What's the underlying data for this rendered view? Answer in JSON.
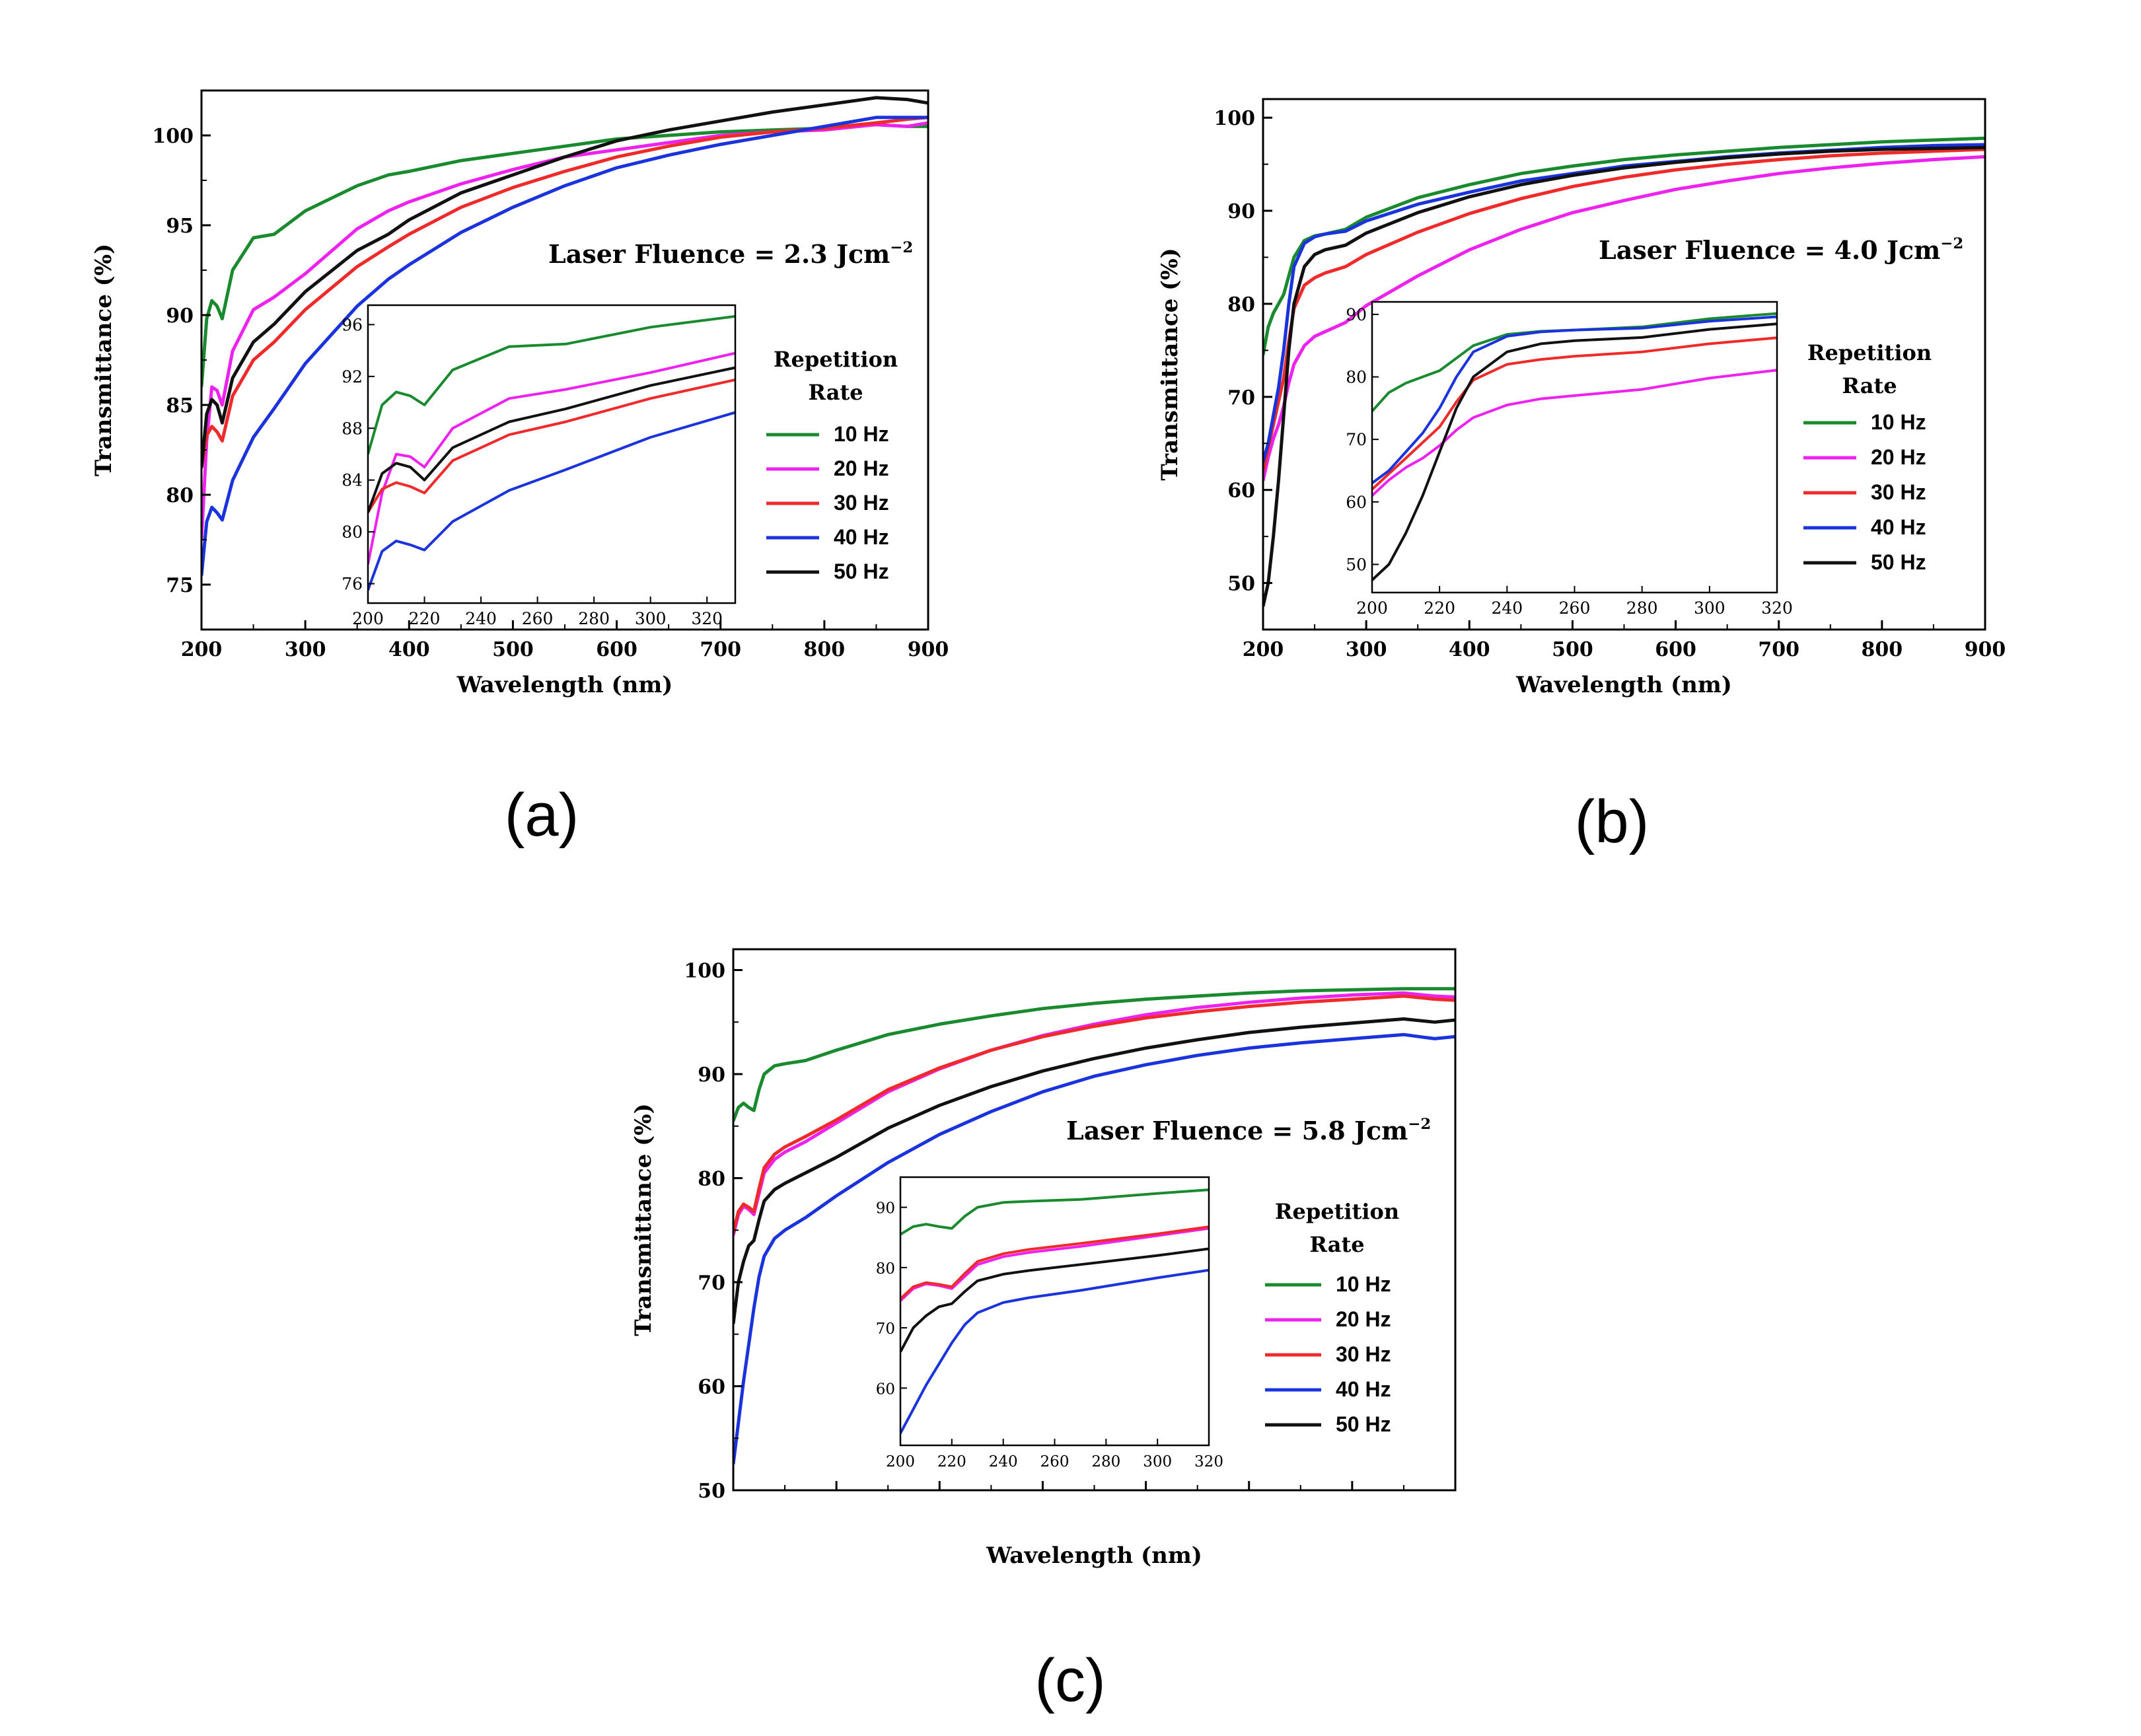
{
  "panels": [
    {
      "letter": "(a)"
    },
    {
      "letter": "(b)"
    },
    {
      "letter": "(c)"
    }
  ],
  "chart_data": [
    {
      "type": "line",
      "panel": "(a)",
      "annotation": "Laser Fluence = 2.3 Jcm",
      "annotation_sup": "−2",
      "xlabel": "Wavelength (nm)",
      "ylabel": "Transmittance (%)",
      "xlim": [
        200,
        900
      ],
      "ylim": [
        72.5,
        102.5
      ],
      "xticks": [
        200,
        300,
        400,
        500,
        600,
        700,
        800,
        900
      ],
      "yticks": [
        75,
        80,
        85,
        90,
        95,
        100
      ],
      "legend_title": [
        "Repetition",
        "Rate"
      ],
      "series": [
        {
          "name": "10 Hz",
          "color": "#1a8a2e",
          "x": [
            200,
            205,
            210,
            215,
            220,
            230,
            250,
            270,
            300,
            350,
            380,
            400,
            450,
            500,
            550,
            600,
            650,
            700,
            750,
            800,
            850,
            880,
            900
          ],
          "y": [
            86,
            89.8,
            90.8,
            90.5,
            89.8,
            92.5,
            94.3,
            94.5,
            95.8,
            97.2,
            97.8,
            98.0,
            98.6,
            99.0,
            99.4,
            99.8,
            100.0,
            100.2,
            100.3,
            100.4,
            100.6,
            100.5,
            100.5
          ]
        },
        {
          "name": "20 Hz",
          "color": "#ee22ee",
          "x": [
            200,
            205,
            210,
            215,
            220,
            230,
            250,
            270,
            300,
            350,
            380,
            400,
            450,
            500,
            550,
            600,
            650,
            700,
            750,
            800,
            850,
            880,
            900
          ],
          "y": [
            77.5,
            83.0,
            86.0,
            85.8,
            85.0,
            88.0,
            90.3,
            91.0,
            92.3,
            94.8,
            95.8,
            96.3,
            97.3,
            98.1,
            98.8,
            99.2,
            99.6,
            100.0,
            100.2,
            100.3,
            100.6,
            100.5,
            100.7
          ]
        },
        {
          "name": "30 Hz",
          "color": "#ee2a2a",
          "x": [
            200,
            205,
            210,
            215,
            220,
            230,
            250,
            270,
            300,
            350,
            380,
            400,
            450,
            500,
            550,
            600,
            650,
            700,
            750,
            800,
            850,
            880,
            900
          ],
          "y": [
            81.5,
            83.3,
            83.8,
            83.5,
            83.0,
            85.5,
            87.5,
            88.5,
            90.3,
            92.7,
            93.8,
            94.5,
            96.0,
            97.1,
            98.0,
            98.8,
            99.4,
            99.9,
            100.2,
            100.4,
            100.7,
            100.9,
            101.0
          ]
        },
        {
          "name": "40 Hz",
          "color": "#1a33dd",
          "x": [
            200,
            205,
            210,
            215,
            220,
            230,
            250,
            270,
            300,
            350,
            380,
            400,
            450,
            500,
            550,
            600,
            650,
            700,
            750,
            800,
            850,
            880,
            900
          ],
          "y": [
            75.5,
            78.5,
            79.3,
            79.0,
            78.6,
            80.8,
            83.2,
            84.8,
            87.3,
            90.5,
            92.0,
            92.8,
            94.6,
            96.0,
            97.2,
            98.2,
            98.9,
            99.5,
            100.0,
            100.5,
            101.0,
            101.0,
            101.0
          ]
        },
        {
          "name": "50 Hz",
          "color": "#111111",
          "x": [
            200,
            205,
            210,
            215,
            220,
            230,
            250,
            270,
            300,
            350,
            380,
            400,
            450,
            500,
            550,
            600,
            650,
            700,
            750,
            800,
            850,
            880,
            900
          ],
          "y": [
            81.5,
            84.5,
            85.3,
            85.0,
            84.0,
            86.5,
            88.5,
            89.5,
            91.3,
            93.6,
            94.5,
            95.3,
            96.8,
            97.8,
            98.8,
            99.7,
            100.3,
            100.8,
            101.3,
            101.7,
            102.1,
            102.0,
            101.8
          ]
        }
      ],
      "inset": {
        "xlim": [
          200,
          330
        ],
        "ylim": [
          74.5,
          97.5
        ],
        "xticks": [
          200,
          220,
          240,
          260,
          280,
          300,
          320
        ],
        "yticks": [
          76,
          80,
          84,
          88,
          92,
          96
        ]
      }
    },
    {
      "type": "line",
      "panel": "(b)",
      "annotation": "Laser Fluence = 4.0 Jcm",
      "annotation_sup": "−2",
      "xlabel": "Wavelength (nm)",
      "ylabel": "Transmittance (%)",
      "xlim": [
        200,
        900
      ],
      "ylim": [
        45,
        102
      ],
      "xticks": [
        200,
        300,
        400,
        500,
        600,
        700,
        800,
        900
      ],
      "yticks": [
        50,
        60,
        70,
        80,
        90,
        100
      ],
      "legend_title": [
        "Repetition",
        "Rate"
      ],
      "series": [
        {
          "name": "10 Hz",
          "color": "#1a8a2e",
          "x": [
            200,
            205,
            210,
            215,
            220,
            225,
            230,
            240,
            250,
            260,
            280,
            300,
            350,
            400,
            450,
            500,
            550,
            600,
            650,
            700,
            750,
            800,
            850,
            900
          ],
          "y": [
            74.5,
            77.5,
            79,
            80,
            81,
            83,
            85,
            86.8,
            87.3,
            87.5,
            88,
            89.3,
            91.4,
            92.8,
            94.0,
            94.8,
            95.5,
            96.0,
            96.4,
            96.8,
            97.1,
            97.4,
            97.6,
            97.8
          ]
        },
        {
          "name": "20 Hz",
          "color": "#ee22ee",
          "x": [
            200,
            205,
            210,
            215,
            220,
            225,
            230,
            240,
            250,
            260,
            280,
            300,
            350,
            400,
            450,
            500,
            550,
            600,
            650,
            700,
            750,
            800,
            850,
            900
          ],
          "y": [
            61,
            63.5,
            65.5,
            67,
            69,
            71.5,
            73.5,
            75.5,
            76.5,
            77,
            78,
            79.8,
            83.0,
            85.8,
            88.0,
            89.8,
            91.1,
            92.3,
            93.2,
            94.0,
            94.6,
            95.1,
            95.5,
            95.8
          ]
        },
        {
          "name": "30 Hz",
          "color": "#ee2a2a",
          "x": [
            200,
            205,
            210,
            215,
            220,
            225,
            230,
            240,
            250,
            260,
            280,
            300,
            350,
            400,
            450,
            500,
            550,
            600,
            650,
            700,
            750,
            800,
            850,
            900
          ],
          "y": [
            62,
            64.5,
            67,
            69.5,
            72,
            76,
            79.5,
            82,
            82.8,
            83.3,
            84,
            85.3,
            87.7,
            89.7,
            91.3,
            92.6,
            93.6,
            94.4,
            95.0,
            95.5,
            95.9,
            96.2,
            96.4,
            96.6
          ]
        },
        {
          "name": "40 Hz",
          "color": "#1a33dd",
          "x": [
            200,
            205,
            210,
            215,
            220,
            225,
            230,
            240,
            250,
            260,
            280,
            300,
            350,
            400,
            450,
            500,
            550,
            600,
            650,
            700,
            750,
            800,
            850,
            900
          ],
          "y": [
            63,
            65,
            68,
            71,
            75,
            80,
            84,
            86.5,
            87.2,
            87.5,
            87.8,
            88.9,
            90.7,
            92.0,
            93.2,
            94.0,
            94.8,
            95.3,
            95.8,
            96.2,
            96.5,
            96.8,
            97.0,
            97.1
          ]
        },
        {
          "name": "50 Hz",
          "color": "#111111",
          "x": [
            200,
            205,
            210,
            215,
            220,
            225,
            230,
            240,
            250,
            260,
            280,
            300,
            350,
            400,
            450,
            500,
            550,
            600,
            650,
            700,
            750,
            800,
            850,
            900
          ],
          "y": [
            47.5,
            50,
            55,
            61,
            68,
            75,
            80,
            84,
            85.3,
            85.8,
            86.3,
            87.6,
            89.8,
            91.5,
            92.8,
            93.8,
            94.6,
            95.2,
            95.7,
            96.1,
            96.4,
            96.6,
            96.7,
            96.8
          ]
        }
      ],
      "inset": {
        "xlim": [
          200,
          320
        ],
        "ylim": [
          45.5,
          92
        ],
        "xticks": [
          200,
          220,
          240,
          260,
          280,
          300,
          320
        ],
        "yticks": [
          50,
          60,
          70,
          80,
          90
        ]
      }
    },
    {
      "type": "line",
      "panel": "(c)",
      "annotation": "Laser Fluence = 5.8 Jcm",
      "annotation_sup": "−2",
      "xlabel": "Wavelength (nm)",
      "ylabel": "Transmittance (%)",
      "xlim": [
        200,
        900
      ],
      "ylim": [
        50,
        102
      ],
      "xticks": [],
      "yticks": [
        50,
        60,
        70,
        80,
        90,
        100
      ],
      "legend_title": [
        "Repetition",
        "Rate"
      ],
      "series": [
        {
          "name": "10 Hz",
          "color": "#1a8a2e",
          "x": [
            200,
            205,
            210,
            215,
            220,
            225,
            230,
            240,
            250,
            270,
            300,
            350,
            400,
            450,
            500,
            550,
            600,
            650,
            700,
            750,
            800,
            850,
            880,
            900
          ],
          "y": [
            85.5,
            86.8,
            87.2,
            86.8,
            86.5,
            88.5,
            90,
            90.8,
            91.0,
            91.3,
            92.3,
            93.8,
            94.8,
            95.6,
            96.3,
            96.8,
            97.2,
            97.5,
            97.8,
            98.0,
            98.1,
            98.2,
            98.2,
            98.2
          ]
        },
        {
          "name": "20 Hz",
          "color": "#ee22ee",
          "x": [
            200,
            205,
            210,
            215,
            220,
            225,
            230,
            240,
            250,
            270,
            300,
            350,
            400,
            450,
            500,
            550,
            600,
            650,
            700,
            750,
            800,
            850,
            880,
            900
          ],
          "y": [
            74.5,
            76.5,
            77.3,
            77,
            76.5,
            78.5,
            80.5,
            81.8,
            82.5,
            83.5,
            85.3,
            88.3,
            90.5,
            92.3,
            93.7,
            94.8,
            95.7,
            96.4,
            96.9,
            97.3,
            97.6,
            97.8,
            97.5,
            97.4
          ]
        },
        {
          "name": "30 Hz",
          "color": "#ee2a2a",
          "x": [
            200,
            205,
            210,
            215,
            220,
            225,
            230,
            240,
            250,
            270,
            300,
            350,
            400,
            450,
            500,
            550,
            600,
            650,
            700,
            750,
            800,
            850,
            880,
            900
          ],
          "y": [
            74.8,
            76.8,
            77.5,
            77.2,
            76.8,
            79,
            81,
            82.3,
            83,
            84,
            85.6,
            88.5,
            90.6,
            92.3,
            93.6,
            94.6,
            95.4,
            96.0,
            96.5,
            96.9,
            97.2,
            97.5,
            97.2,
            97.1
          ]
        },
        {
          "name": "40 Hz",
          "color": "#1a33dd",
          "x": [
            200,
            205,
            210,
            215,
            220,
            225,
            230,
            240,
            250,
            270,
            300,
            350,
            400,
            450,
            500,
            550,
            600,
            650,
            700,
            750,
            800,
            850,
            880,
            900
          ],
          "y": [
            52.5,
            56.5,
            60.5,
            64,
            67.5,
            70.5,
            72.5,
            74.2,
            75.0,
            76.2,
            78.3,
            81.5,
            84.2,
            86.4,
            88.3,
            89.8,
            90.9,
            91.8,
            92.5,
            93.0,
            93.4,
            93.8,
            93.4,
            93.6
          ]
        },
        {
          "name": "50 Hz",
          "color": "#111111",
          "x": [
            200,
            205,
            210,
            215,
            220,
            225,
            230,
            240,
            250,
            270,
            300,
            350,
            400,
            450,
            500,
            550,
            600,
            650,
            700,
            750,
            800,
            850,
            880,
            900
          ],
          "y": [
            66,
            70,
            72,
            73.5,
            74,
            76,
            77.8,
            78.9,
            79.5,
            80.5,
            82.0,
            84.8,
            87.0,
            88.8,
            90.3,
            91.5,
            92.5,
            93.3,
            94.0,
            94.5,
            94.9,
            95.3,
            95.0,
            95.2
          ]
        }
      ],
      "inset": {
        "xlim": [
          200,
          320
        ],
        "ylim": [
          50.5,
          95
        ],
        "xticks": [
          200,
          220,
          240,
          260,
          280,
          300,
          320
        ],
        "yticks": [
          60,
          70,
          80,
          90
        ]
      }
    }
  ]
}
